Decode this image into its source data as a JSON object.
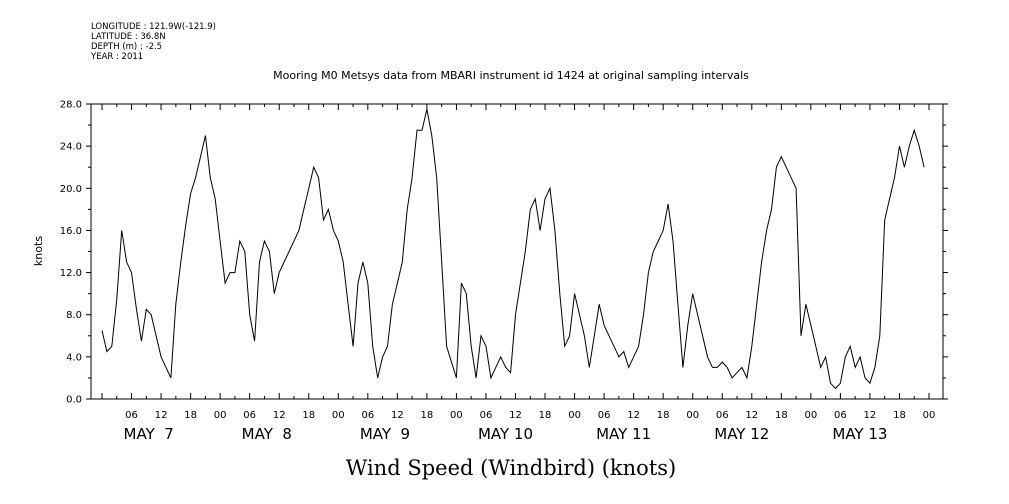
{
  "header": {
    "longitude": "LONGITUDE : 121.9W(-121.9)",
    "latitude": "LATITUDE : 36.8N",
    "depth": "DEPTH (m) : -2.5",
    "year": "YEAR : 2011"
  },
  "chart_data": {
    "type": "line",
    "title": "Mooring M0 Metsys data from MBARI instrument id 1424 at original sampling intervals",
    "xlabel": "Wind Speed (Windbird) (knots)",
    "ylabel": "knots",
    "ylim": [
      0,
      28
    ],
    "y_ticks": [
      "0.0",
      "4.0",
      "8.0",
      "12.0",
      "16.0",
      "20.0",
      "24.0",
      "28.0"
    ],
    "y_tick_values": [
      0,
      4,
      8,
      12,
      16,
      20,
      24,
      28
    ],
    "x_range_hours": [
      0,
      168
    ],
    "x_ticks": [
      "06",
      "12",
      "18",
      "00",
      "06",
      "12",
      "18",
      "00",
      "06",
      "12",
      "18",
      "00",
      "06",
      "12",
      "18",
      "00",
      "06",
      "12",
      "18",
      "00",
      "06",
      "12",
      "18",
      "00",
      "06",
      "12",
      "18",
      "00"
    ],
    "day_labels": [
      "MAY  7",
      "MAY  8",
      "MAY  9",
      "MAY 10",
      "MAY 11",
      "MAY 12",
      "MAY 13"
    ],
    "grid": false,
    "series": [
      {
        "color": "#000000",
        "x": [
          0,
          1,
          2,
          3,
          4,
          5,
          6,
          7,
          8,
          9,
          10,
          11,
          12,
          13,
          14,
          15,
          16,
          17,
          18,
          19,
          20,
          21,
          22,
          23,
          24,
          25,
          26,
          27,
          28,
          29,
          30,
          31,
          32,
          33,
          34,
          35,
          36,
          37,
          38,
          39,
          40,
          41,
          42,
          43,
          44,
          45,
          46,
          47,
          48,
          49,
          50,
          51,
          52,
          53,
          54,
          55,
          56,
          57,
          58,
          59,
          60,
          61,
          62,
          63,
          64,
          65,
          66,
          67,
          68,
          69,
          70,
          71,
          72,
          73,
          74,
          75,
          76,
          77,
          78,
          79,
          80,
          81,
          82,
          83,
          84,
          85,
          86,
          87,
          88,
          89,
          90,
          91,
          92,
          93,
          94,
          95,
          96,
          97,
          98,
          99,
          100,
          101,
          102,
          103,
          104,
          105,
          106,
          107,
          108,
          109,
          110,
          111,
          112,
          113,
          114,
          115,
          116,
          117,
          118,
          119,
          120,
          121,
          122,
          123,
          124,
          125,
          126,
          127,
          128,
          129,
          130,
          131,
          132,
          133,
          134,
          135,
          136,
          137,
          138,
          139,
          140,
          141,
          142,
          143,
          144,
          145,
          146,
          147,
          148,
          149,
          150,
          151,
          152,
          153,
          154,
          155,
          156,
          157,
          158,
          159,
          160,
          161,
          162,
          163,
          164,
          165,
          166,
          167
        ],
        "values": [
          6.5,
          4.5,
          5.0,
          9.5,
          16.0,
          13.0,
          12.0,
          8.5,
          5.5,
          8.5,
          8.0,
          6.0,
          4.0,
          3.0,
          2.0,
          9.0,
          13.0,
          16.5,
          19.5,
          21.0,
          23.0,
          25.0,
          21.0,
          19.0,
          15.0,
          11.0,
          12.0,
          12.0,
          15.0,
          14.0,
          8.0,
          5.5,
          13.0,
          15.0,
          14.0,
          10.0,
          12.0,
          13.0,
          14.0,
          15.0,
          16.0,
          18.0,
          20.0,
          22.0,
          21.0,
          17.0,
          18.0,
          16.0,
          15.0,
          13.0,
          9.0,
          5.0,
          11.0,
          13.0,
          11.0,
          5.0,
          2.0,
          4.0,
          5.0,
          9.0,
          11.0,
          13.0,
          18.0,
          21.0,
          25.5,
          25.5,
          27.5,
          25.0,
          21.0,
          13.0,
          5.0,
          3.5,
          2.0,
          11.0,
          10.0,
          5.0,
          2.0,
          6.0,
          5.0,
          2.0,
          3.0,
          4.0,
          3.0,
          2.5,
          8.0,
          11.0,
          14.0,
          18.0,
          19.0,
          16.0,
          19.0,
          20.0,
          16.0,
          10.0,
          5.0,
          6.0,
          10.0,
          8.0,
          6.0,
          3.0,
          6.0,
          9.0,
          7.0,
          6.0,
          5.0,
          4.0,
          4.5,
          3.0,
          4.0,
          5.0,
          8.0,
          12.0,
          14.0,
          15.0,
          16.0,
          18.5,
          15.0,
          9.0,
          3.0,
          7.0,
          10.0,
          8.0,
          6.0,
          4.0,
          3.0,
          3.0,
          3.5,
          3.0,
          2.0,
          2.5,
          3.0,
          2.0,
          5.0,
          9.0,
          13.0,
          16.0,
          18.0,
          22.0,
          23.0,
          22.0,
          21.0,
          20.0,
          6.0,
          9.0,
          7.0,
          5.0,
          3.0,
          4.0,
          1.5,
          1.0,
          1.5,
          4.0,
          5.0,
          3.0,
          4.0,
          2.0,
          1.5,
          3.0,
          6.0,
          17.0,
          19.0,
          21.0,
          24.0,
          22.0,
          24.0,
          25.5,
          24.0,
          22.0
        ]
      }
    ]
  }
}
